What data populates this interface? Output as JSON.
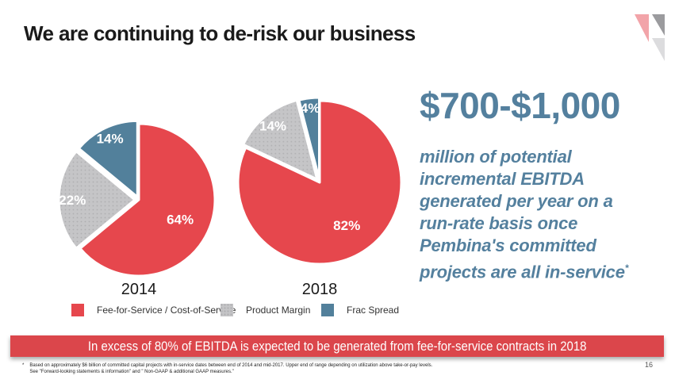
{
  "slide": {
    "title": "We are continuing to de-risk our business",
    "page_number": "16"
  },
  "logo": {
    "colors": {
      "pink": "#F2A4A9",
      "gray": "#9B9B9E",
      "light_gray": "#DCDCDE"
    }
  },
  "colors": {
    "slice_red": "#E6474D",
    "slice_gray": "#C5C5C7",
    "gray_dot": "#AFAFB1",
    "slice_blue": "#52809B",
    "highlight_blue": "#54809E",
    "banner_red": "#DB464B"
  },
  "highlight": {
    "headline": "$700-$1,000",
    "body": "million of potential\nincremental EBITDA\ngenerated per year on a\nrun-rate basis once\nPembina's committed\nprojects are all in-service",
    "footnote_marker": "*",
    "color": "#54809E"
  },
  "chart_data": [
    {
      "type": "pie",
      "title": "2014",
      "labels": [
        "Fee-for-Service / Cost-of-Service",
        "Product Margin",
        "Frac Spread"
      ],
      "values": [
        64,
        22,
        14
      ],
      "value_labels": [
        "64%",
        "22%",
        "14%"
      ],
      "colors": [
        "#E6474D",
        "#C5C5C7",
        "#52809B"
      ],
      "start_angle_deg": 0,
      "direction": "clockwise",
      "legend_position": "bottom"
    },
    {
      "type": "pie",
      "title": "2018",
      "labels": [
        "Fee-for-Service / Cost-of-Service",
        "Product Margin",
        "Frac Spread"
      ],
      "values": [
        82,
        14,
        4
      ],
      "value_labels": [
        "82%",
        "14%",
        "4%"
      ],
      "colors": [
        "#E6474D",
        "#C5C5C7",
        "#52809B"
      ],
      "start_angle_deg": 0,
      "direction": "clockwise",
      "legend_position": "bottom"
    }
  ],
  "legend": {
    "items": [
      {
        "label": "Fee-for-Service / Cost-of-Service",
        "color": "#E6474D",
        "dotted": false
      },
      {
        "label": "Product Margin",
        "color": "#C5C5C7",
        "dotted": true
      },
      {
        "label": "Frac Spread",
        "color": "#52809B",
        "dotted": false
      }
    ]
  },
  "banner": {
    "text": "In excess of 80% of EBITDA is expected to be generated from fee-for-service contracts in 2018",
    "bg_color": "#DB464B",
    "text_color": "#FFFFFF"
  },
  "footnote": {
    "marker": "*",
    "lines": [
      "Based on approximately $6 billion of committed capital projects with in-service dates between end of 2014 and mid-2017. Upper end of range depending on utilization above take-or-pay levels.",
      "See \"Forward-looking statements & information\" and \" Non-GAAP & additional GAAP measures.\""
    ]
  }
}
